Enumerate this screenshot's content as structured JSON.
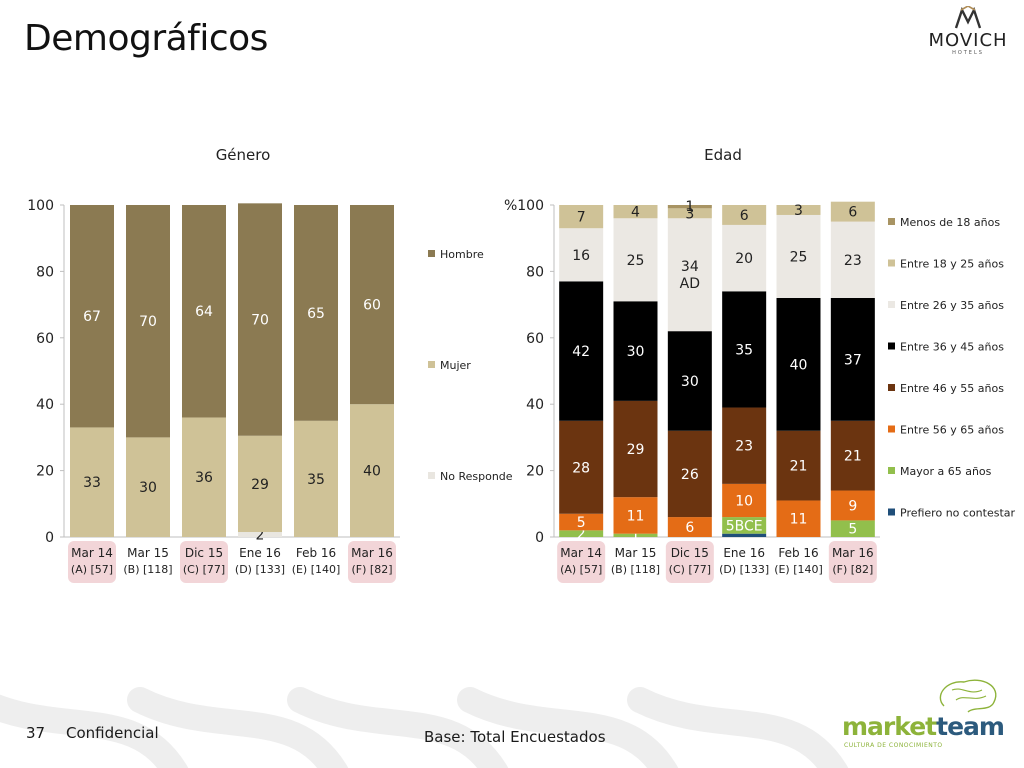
{
  "slide": {
    "title": "Demográficos",
    "brand_name": "MOVICH",
    "brand_sub": "HOTELS",
    "page_number": "37",
    "confidential": "Confidencial",
    "base_note": "Base: Total Encuestados",
    "footer_brand_a": "market",
    "footer_brand_b": "team",
    "footer_brand_sub": "CULTURA DE CONOCIMIENTO"
  },
  "colors": {
    "dark_gold": "#8b7a52",
    "light_gold": "#cfc297",
    "very_light": "#e9e6e0",
    "menos18": "#a89463",
    "e18_25": "#cfc297",
    "e26_35": "#ebe8e3",
    "e36_45": "#000000",
    "e46_55": "#6b3410",
    "e56_65": "#e46c16",
    "mayor65": "#92bf4c",
    "prefiero": "#1f4e79",
    "highlight_pink": "#f2d5d8"
  },
  "chart_data": [
    {
      "type": "bar",
      "stacked": true,
      "title": "Género",
      "ylim": [
        0,
        100
      ],
      "yticks": [
        "0",
        "20",
        "40",
        "60",
        "80",
        "100"
      ],
      "categories": [
        {
          "line1": "Mar 14",
          "line2": "(A) [57]",
          "highlight": true
        },
        {
          "line1": "Mar 15",
          "line2": "(B) [118]",
          "highlight": false
        },
        {
          "line1": "Dic 15",
          "line2": "(C) [77]",
          "highlight": true
        },
        {
          "line1": "Ene 16",
          "line2": "(D) [133]",
          "highlight": false
        },
        {
          "line1": "Feb 16",
          "line2": "(E) [140]",
          "highlight": false
        },
        {
          "line1": "Mar 16",
          "line2": "(F) [82]",
          "highlight": true
        }
      ],
      "legend_position": "right",
      "series": [
        {
          "name": "No Responde",
          "color_key": "very_light",
          "values": [
            0,
            0,
            0,
            1.5,
            0,
            0
          ],
          "labels": [
            "",
            "",
            "",
            "2",
            "",
            ""
          ]
        },
        {
          "name": "Mujer",
          "color_key": "light_gold",
          "values": [
            33,
            30,
            36,
            29,
            35,
            40
          ],
          "labels": [
            "33",
            "30",
            "36",
            "29",
            "35",
            "40"
          ]
        },
        {
          "name": "Hombre",
          "color_key": "dark_gold",
          "values": [
            67,
            70,
            64,
            70,
            65,
            60
          ],
          "labels": [
            "67",
            "70",
            "64",
            "70",
            "65",
            "60"
          ]
        }
      ],
      "legend_order": [
        "Hombre",
        "Mujer",
        "No Responde"
      ]
    },
    {
      "type": "bar",
      "stacked": true,
      "title": "Edad",
      "ylim": [
        0,
        100
      ],
      "yticks": [
        "0",
        "20",
        "40",
        "60",
        "80",
        "%100"
      ],
      "categories": [
        {
          "line1": "Mar 14",
          "line2": "(A) [57]",
          "highlight": true
        },
        {
          "line1": "Mar 15",
          "line2": "(B) [118]",
          "highlight": false
        },
        {
          "line1": "Dic 15",
          "line2": "(C) [77]",
          "highlight": true
        },
        {
          "line1": "Ene 16",
          "line2": "(D) [133]",
          "highlight": false
        },
        {
          "line1": "Feb 16",
          "line2": "(E) [140]",
          "highlight": false
        },
        {
          "line1": "Mar 16",
          "line2": "(F) [82]",
          "highlight": true
        }
      ],
      "legend_position": "right",
      "series": [
        {
          "name": "Prefiero no contestar",
          "color_key": "prefiero",
          "values": [
            0,
            0,
            0,
            1,
            0,
            0
          ],
          "labels": [
            "",
            "",
            "",
            "",
            "",
            ""
          ]
        },
        {
          "name": "Mayor a 65 años",
          "color_key": "mayor65",
          "values": [
            2,
            1,
            0,
            5,
            0,
            5
          ],
          "labels": [
            "2",
            "1",
            "",
            "5BCE",
            "",
            "5"
          ]
        },
        {
          "name": "Entre 56 y 65 años",
          "color_key": "e56_65",
          "values": [
            5,
            11,
            6,
            10,
            11,
            9
          ],
          "labels": [
            "5",
            "11",
            "6",
            "10",
            "11",
            "9"
          ]
        },
        {
          "name": "Entre 46 y 55 años",
          "color_key": "e46_55",
          "values": [
            28,
            29,
            26,
            23,
            21,
            21
          ],
          "labels": [
            "28",
            "29",
            "26",
            "23",
            "21",
            "21"
          ]
        },
        {
          "name": "Entre 36 y 45 años",
          "color_key": "e36_45",
          "values": [
            42,
            30,
            30,
            35,
            40,
            37
          ],
          "labels": [
            "42",
            "30",
            "30",
            "35",
            "40",
            "37"
          ]
        },
        {
          "name": "Entre 26 y 35 años",
          "color_key": "e26_35",
          "values": [
            16,
            25,
            34,
            20,
            25,
            23
          ],
          "labels": [
            "16",
            "25",
            "34\nAD",
            "20",
            "25",
            "23"
          ]
        },
        {
          "name": "Entre 18 y 25 años",
          "color_key": "e18_25",
          "values": [
            7,
            4,
            3,
            6,
            3,
            6
          ],
          "labels": [
            "7",
            "4",
            "3",
            "6",
            "3",
            "6"
          ]
        },
        {
          "name": "Menos de 18 años",
          "color_key": "menos18",
          "values": [
            0,
            0,
            1,
            0,
            0,
            0
          ],
          "labels": [
            "",
            "",
            "1",
            "",
            "",
            ""
          ]
        }
      ],
      "legend_order": [
        "Menos de 18 años",
        "Entre 18 y 25 años",
        "Entre 26 y 35 años",
        "Entre 36 y 45 años",
        "Entre 46 y 55 años",
        "Entre 56 y 65 años",
        "Mayor a 65 años",
        "Prefiero no contestar"
      ]
    }
  ]
}
